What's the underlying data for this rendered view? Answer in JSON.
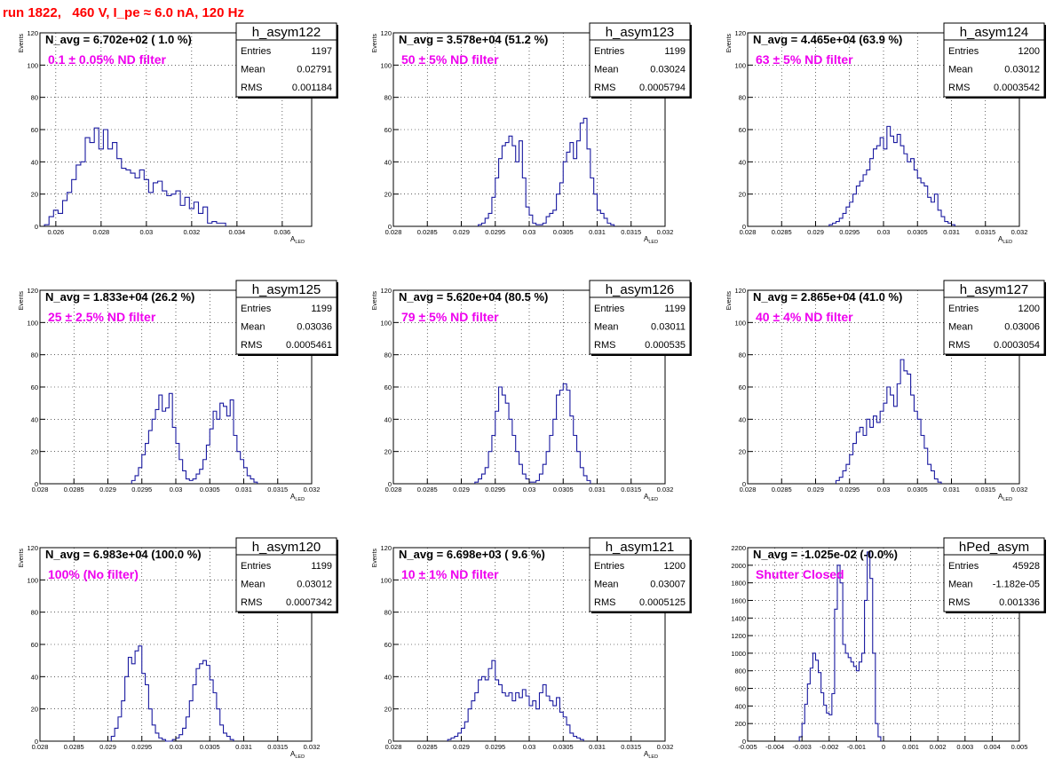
{
  "header": {
    "title": "run 1822,   460 V, I_pe ≈ 6.0 nA, 120 Hz"
  },
  "stats_labels": {
    "entries": "Entries",
    "mean": "Mean",
    "rms": "RMS"
  },
  "chart_data": [
    {
      "type": "histogram",
      "name": "h_asym122",
      "navg_text": "N_avg = 6.702e+02 ( 1.0 %)",
      "annotation": "0.1 ± 0.05% ND filter",
      "stats": {
        "entries": "1197",
        "mean": "0.02791",
        "rms": "0.001184"
      },
      "ylabel": "Events",
      "xlabel": "A",
      "xlabel_sub": "LED",
      "xlim": [
        0.0253,
        0.0373
      ],
      "ylim": [
        0,
        120
      ],
      "xticks": [
        0.026,
        0.028,
        0.03,
        0.032,
        0.034,
        0.036
      ],
      "xtick_labels": [
        "0.026",
        "0.028",
        "0.03",
        "0.032",
        "0.034",
        "0.036"
      ],
      "yticks": [
        0,
        20,
        40,
        60,
        80,
        100,
        120
      ],
      "ytick_labels": [
        "0",
        "20",
        "40",
        "60",
        "80",
        "100",
        "120"
      ],
      "bin_start": 0.0255,
      "bin_width": 0.0002,
      "counts": [
        1,
        6,
        10,
        8,
        16,
        21,
        29,
        38,
        40,
        55,
        52,
        61,
        48,
        60,
        48,
        52,
        42,
        36,
        35,
        33,
        30,
        35,
        29,
        21,
        27,
        28,
        22,
        19,
        20,
        22,
        13,
        18,
        11,
        15,
        8,
        12,
        2,
        3,
        2,
        2
      ]
    },
    {
      "type": "histogram",
      "name": "h_asym123",
      "navg_text": "N_avg = 3.578e+04 (51.2 %)",
      "annotation": "50 ± 5% ND filter",
      "stats": {
        "entries": "1199",
        "mean": "0.03024",
        "rms": "0.0005794"
      },
      "ylabel": "Events",
      "xlabel": "A",
      "xlabel_sub": "LED",
      "xlim": [
        0.028,
        0.032
      ],
      "ylim": [
        0,
        120
      ],
      "xticks": [
        0.028,
        0.0285,
        0.029,
        0.0295,
        0.03,
        0.0305,
        0.031,
        0.0315,
        0.032
      ],
      "xtick_labels": [
        "0.028",
        "0.0285",
        "0.029",
        "0.0295",
        "0.03",
        "0.0305",
        "0.031",
        "0.0315",
        "0.032"
      ],
      "yticks": [
        0,
        20,
        40,
        60,
        80,
        100,
        120
      ],
      "ytick_labels": [
        "0",
        "20",
        "40",
        "60",
        "80",
        "100",
        "120"
      ],
      "bin_start": 0.02925,
      "bin_width": 5e-05,
      "counts": [
        1,
        2,
        5,
        8,
        18,
        30,
        42,
        50,
        52,
        56,
        50,
        40,
        53,
        30,
        12,
        7,
        2,
        1,
        1,
        2,
        6,
        8,
        10,
        20,
        27,
        40,
        46,
        52,
        42,
        53,
        64,
        67,
        48,
        30,
        20,
        10,
        8,
        5,
        2,
        1
      ]
    },
    {
      "type": "histogram",
      "name": "h_asym124",
      "navg_text": "N_avg = 4.465e+04 (63.9 %)",
      "annotation": "63 ± 5% ND filter",
      "stats": {
        "entries": "1200",
        "mean": "0.03012",
        "rms": "0.0003542"
      },
      "ylabel": "Events",
      "xlabel": "A",
      "xlabel_sub": "LED",
      "xlim": [
        0.028,
        0.032
      ],
      "ylim": [
        0,
        120
      ],
      "xticks": [
        0.028,
        0.0285,
        0.029,
        0.0295,
        0.03,
        0.0305,
        0.031,
        0.0315,
        0.032
      ],
      "xtick_labels": [
        "0.028",
        "0.0285",
        "0.029",
        "0.0295",
        "0.03",
        "0.0305",
        "0.031",
        "0.0315",
        "0.032"
      ],
      "yticks": [
        0,
        20,
        40,
        60,
        80,
        100,
        120
      ],
      "ytick_labels": [
        "0",
        "20",
        "40",
        "60",
        "80",
        "100",
        "120"
      ],
      "bin_start": 0.0292,
      "bin_width": 5e-05,
      "counts": [
        1,
        2,
        3,
        5,
        8,
        12,
        15,
        20,
        25,
        28,
        32,
        35,
        42,
        48,
        50,
        55,
        48,
        62,
        56,
        52,
        57,
        50,
        45,
        40,
        42,
        35,
        30,
        27,
        25,
        18,
        15,
        20,
        10,
        6,
        3,
        2,
        1
      ]
    },
    {
      "type": "histogram",
      "name": "h_asym125",
      "navg_text": "N_avg = 1.833e+04 (26.2 %)",
      "annotation": "25 ± 2.5% ND filter",
      "stats": {
        "entries": "1199",
        "mean": "0.03036",
        "rms": "0.0005461"
      },
      "ylabel": "Events",
      "xlabel": "A",
      "xlabel_sub": "LED",
      "xlim": [
        0.028,
        0.032
      ],
      "ylim": [
        0,
        120
      ],
      "xticks": [
        0.028,
        0.0285,
        0.029,
        0.0295,
        0.03,
        0.0305,
        0.031,
        0.0315,
        0.032
      ],
      "xtick_labels": [
        "0.028",
        "0.0285",
        "0.029",
        "0.0295",
        "0.03",
        "0.0305",
        "0.031",
        "0.0315",
        "0.032"
      ],
      "yticks": [
        0,
        20,
        40,
        60,
        80,
        100,
        120
      ],
      "ytick_labels": [
        "0",
        "20",
        "40",
        "60",
        "80",
        "100",
        "120"
      ],
      "bin_start": 0.02935,
      "bin_width": 5e-05,
      "counts": [
        2,
        5,
        10,
        18,
        25,
        33,
        40,
        46,
        55,
        45,
        47,
        56,
        35,
        25,
        15,
        8,
        3,
        2,
        3,
        6,
        9,
        15,
        24,
        34,
        45,
        40,
        50,
        48,
        42,
        52,
        30,
        20,
        15,
        10,
        5,
        3,
        1
      ]
    },
    {
      "type": "histogram",
      "name": "h_asym126",
      "navg_text": "N_avg = 5.620e+04 (80.5 %)",
      "annotation": "79 ± 5% ND filter",
      "stats": {
        "entries": "1199",
        "mean": "0.03011",
        "rms": "0.000535"
      },
      "ylabel": "Events",
      "xlabel": "A",
      "xlabel_sub": "LED",
      "xlim": [
        0.028,
        0.032
      ],
      "ylim": [
        0,
        120
      ],
      "xticks": [
        0.028,
        0.0285,
        0.029,
        0.0295,
        0.03,
        0.0305,
        0.031,
        0.0315,
        0.032
      ],
      "xtick_labels": [
        "0.028",
        "0.0285",
        "0.029",
        "0.0295",
        "0.03",
        "0.0305",
        "0.031",
        "0.0315",
        "0.032"
      ],
      "yticks": [
        0,
        20,
        40,
        60,
        80,
        100,
        120
      ],
      "ytick_labels": [
        "0",
        "20",
        "40",
        "60",
        "80",
        "100",
        "120"
      ],
      "bin_start": 0.0292,
      "bin_width": 5e-05,
      "counts": [
        1,
        3,
        6,
        10,
        20,
        30,
        45,
        60,
        55,
        50,
        40,
        30,
        20,
        12,
        6,
        3,
        1,
        1,
        2,
        6,
        12,
        20,
        30,
        40,
        55,
        58,
        62,
        58,
        42,
        30,
        20,
        10,
        5,
        2
      ]
    },
    {
      "type": "histogram",
      "name": "h_asym127",
      "navg_text": "N_avg = 2.865e+04 (41.0 %)",
      "annotation": "40 ± 4% ND filter",
      "stats": {
        "entries": "1200",
        "mean": "0.03006",
        "rms": "0.0003054"
      },
      "ylabel": "Events",
      "xlabel": "A",
      "xlabel_sub": "LED",
      "xlim": [
        0.028,
        0.032
      ],
      "ylim": [
        0,
        120
      ],
      "xticks": [
        0.028,
        0.0285,
        0.029,
        0.0295,
        0.03,
        0.0305,
        0.031,
        0.0315,
        0.032
      ],
      "xtick_labels": [
        "0.028",
        "0.0285",
        "0.029",
        "0.0295",
        "0.03",
        "0.0305",
        "0.031",
        "0.0315",
        "0.032"
      ],
      "yticks": [
        0,
        20,
        40,
        60,
        80,
        100,
        120
      ],
      "ytick_labels": [
        "0",
        "20",
        "40",
        "60",
        "80",
        "100",
        "120"
      ],
      "bin_start": 0.0293,
      "bin_width": 5e-05,
      "counts": [
        2,
        4,
        8,
        12,
        18,
        25,
        32,
        35,
        30,
        40,
        35,
        42,
        38,
        45,
        50,
        60,
        55,
        48,
        62,
        77,
        70,
        68,
        55,
        45,
        40,
        30,
        22,
        12,
        8,
        3,
        1
      ]
    },
    {
      "type": "histogram",
      "name": "h_asym120",
      "navg_text": "N_avg = 6.983e+04 (100.0 %)",
      "annotation": "100% (No filter)",
      "stats": {
        "entries": "1199",
        "mean": "0.03012",
        "rms": "0.0007342"
      },
      "ylabel": "Events",
      "xlabel": "A",
      "xlabel_sub": "LED",
      "xlim": [
        0.028,
        0.032
      ],
      "ylim": [
        0,
        120
      ],
      "xticks": [
        0.028,
        0.0285,
        0.029,
        0.0295,
        0.03,
        0.0305,
        0.031,
        0.0315,
        0.032
      ],
      "xtick_labels": [
        "0.028",
        "0.0285",
        "0.029",
        "0.0295",
        "0.03",
        "0.0305",
        "0.031",
        "0.0315",
        "0.032"
      ],
      "yticks": [
        0,
        20,
        40,
        60,
        80,
        100,
        120
      ],
      "ytick_labels": [
        "0",
        "20",
        "40",
        "60",
        "80",
        "100",
        "120"
      ],
      "bin_start": 0.02905,
      "bin_width": 5e-05,
      "counts": [
        3,
        8,
        15,
        25,
        40,
        52,
        48,
        56,
        59,
        42,
        35,
        20,
        10,
        5,
        2,
        1,
        0,
        0,
        1,
        2,
        4,
        8,
        15,
        25,
        35,
        45,
        48,
        50,
        47,
        38,
        30,
        20,
        10,
        5,
        3,
        1
      ]
    },
    {
      "type": "histogram",
      "name": "h_asym121",
      "navg_text": "N_avg = 6.698e+03 ( 9.6 %)",
      "annotation": "10 ± 1% ND filter",
      "stats": {
        "entries": "1200",
        "mean": "0.03007",
        "rms": "0.0005125"
      },
      "ylabel": "Events",
      "xlabel": "A",
      "xlabel_sub": "LED",
      "xlim": [
        0.028,
        0.032
      ],
      "ylim": [
        0,
        120
      ],
      "xticks": [
        0.028,
        0.0285,
        0.029,
        0.0295,
        0.03,
        0.0305,
        0.031,
        0.0315,
        0.032
      ],
      "xtick_labels": [
        "0.028",
        "0.0285",
        "0.029",
        "0.0295",
        "0.03",
        "0.0305",
        "0.031",
        "0.0315",
        "0.032"
      ],
      "yticks": [
        0,
        20,
        40,
        60,
        80,
        100,
        120
      ],
      "ytick_labels": [
        "0",
        "20",
        "40",
        "60",
        "80",
        "100",
        "120"
      ],
      "bin_start": 0.0288,
      "bin_width": 5e-05,
      "counts": [
        1,
        2,
        3,
        5,
        8,
        12,
        20,
        25,
        30,
        38,
        40,
        38,
        45,
        50,
        38,
        35,
        30,
        28,
        30,
        25,
        30,
        27,
        32,
        28,
        22,
        25,
        20,
        30,
        35,
        28,
        25,
        22,
        27,
        18,
        15,
        10,
        5,
        3,
        2,
        1
      ]
    },
    {
      "type": "histogram",
      "name": "hPed_asym",
      "navg_text": "N_avg = -1.025e-02 (-0.0%)",
      "annotation": "Shutter Closed",
      "stats": {
        "entries": "45928",
        "mean": "-1.182e-05",
        "rms": "0.001336"
      },
      "ylabel": "",
      "xlabel": "",
      "xlabel_sub": "",
      "xlim": [
        -0.005,
        0.005
      ],
      "ylim": [
        0,
        2200
      ],
      "xticks": [
        -0.005,
        -0.004,
        -0.003,
        -0.002,
        -0.001,
        0,
        0.001,
        0.002,
        0.003,
        0.004,
        0.005
      ],
      "xtick_labels": [
        "-0.005",
        "-0.004",
        "-0.003",
        "-0.002",
        "-0.001",
        "0",
        "0.001",
        "0.002",
        "0.003",
        "0.004",
        "0.005"
      ],
      "yticks": [
        0,
        200,
        400,
        600,
        800,
        1000,
        1200,
        1400,
        1600,
        1800,
        2000,
        2200
      ],
      "ytick_labels": [
        "0",
        "200",
        "400",
        "600",
        "800",
        "1000",
        "1200",
        "1400",
        "1600",
        "1800",
        "2000",
        "2200"
      ],
      "bin_start": -0.0031,
      "bin_width": 0.0001,
      "counts": [
        50,
        200,
        420,
        650,
        830,
        1000,
        920,
        780,
        550,
        410,
        320,
        300,
        540,
        1500,
        2000,
        1800,
        1100,
        1000,
        950,
        900,
        850,
        800,
        900,
        1000,
        1600,
        2150,
        1850,
        1000,
        200,
        50
      ]
    }
  ]
}
